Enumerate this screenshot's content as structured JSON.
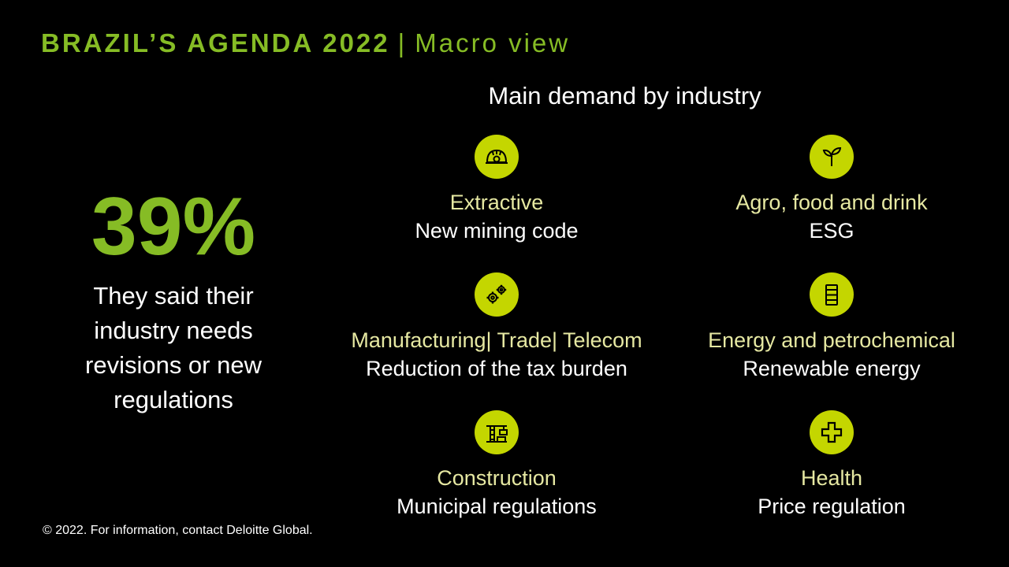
{
  "title": {
    "main": "BRAZIL’S AGENDA 2022",
    "separator": "|",
    "sub": "Macro view"
  },
  "stat": {
    "value": "39%",
    "description": "They said their industry needs revisions or new regulations"
  },
  "section_heading": "Main demand by industry",
  "industries": [
    {
      "name": "Extractive",
      "demand": "New mining code",
      "icon": "mining-helmet-icon"
    },
    {
      "name": "Agro, food and drink",
      "demand": "ESG",
      "icon": "sprout-icon"
    },
    {
      "name": "Manufacturing| Trade| Telecom",
      "demand": "Reduction of the tax burden",
      "icon": "gears-icon"
    },
    {
      "name": "Energy and petrochemical",
      "demand": "Renewable energy",
      "icon": "oil-barrel-icon"
    },
    {
      "name": "Construction",
      "demand": "Municipal regulations",
      "icon": "crane-icon"
    },
    {
      "name": "Health",
      "demand": "Price regulation",
      "icon": "medical-cross-icon"
    }
  ],
  "footer": "© 2022. For information, contact Deloitte Global.",
  "colors": {
    "background": "#000000",
    "accent_green": "#86bc25",
    "icon_circle": "#c4d600",
    "industry_name": "#e6e8a2",
    "text": "#ffffff"
  }
}
